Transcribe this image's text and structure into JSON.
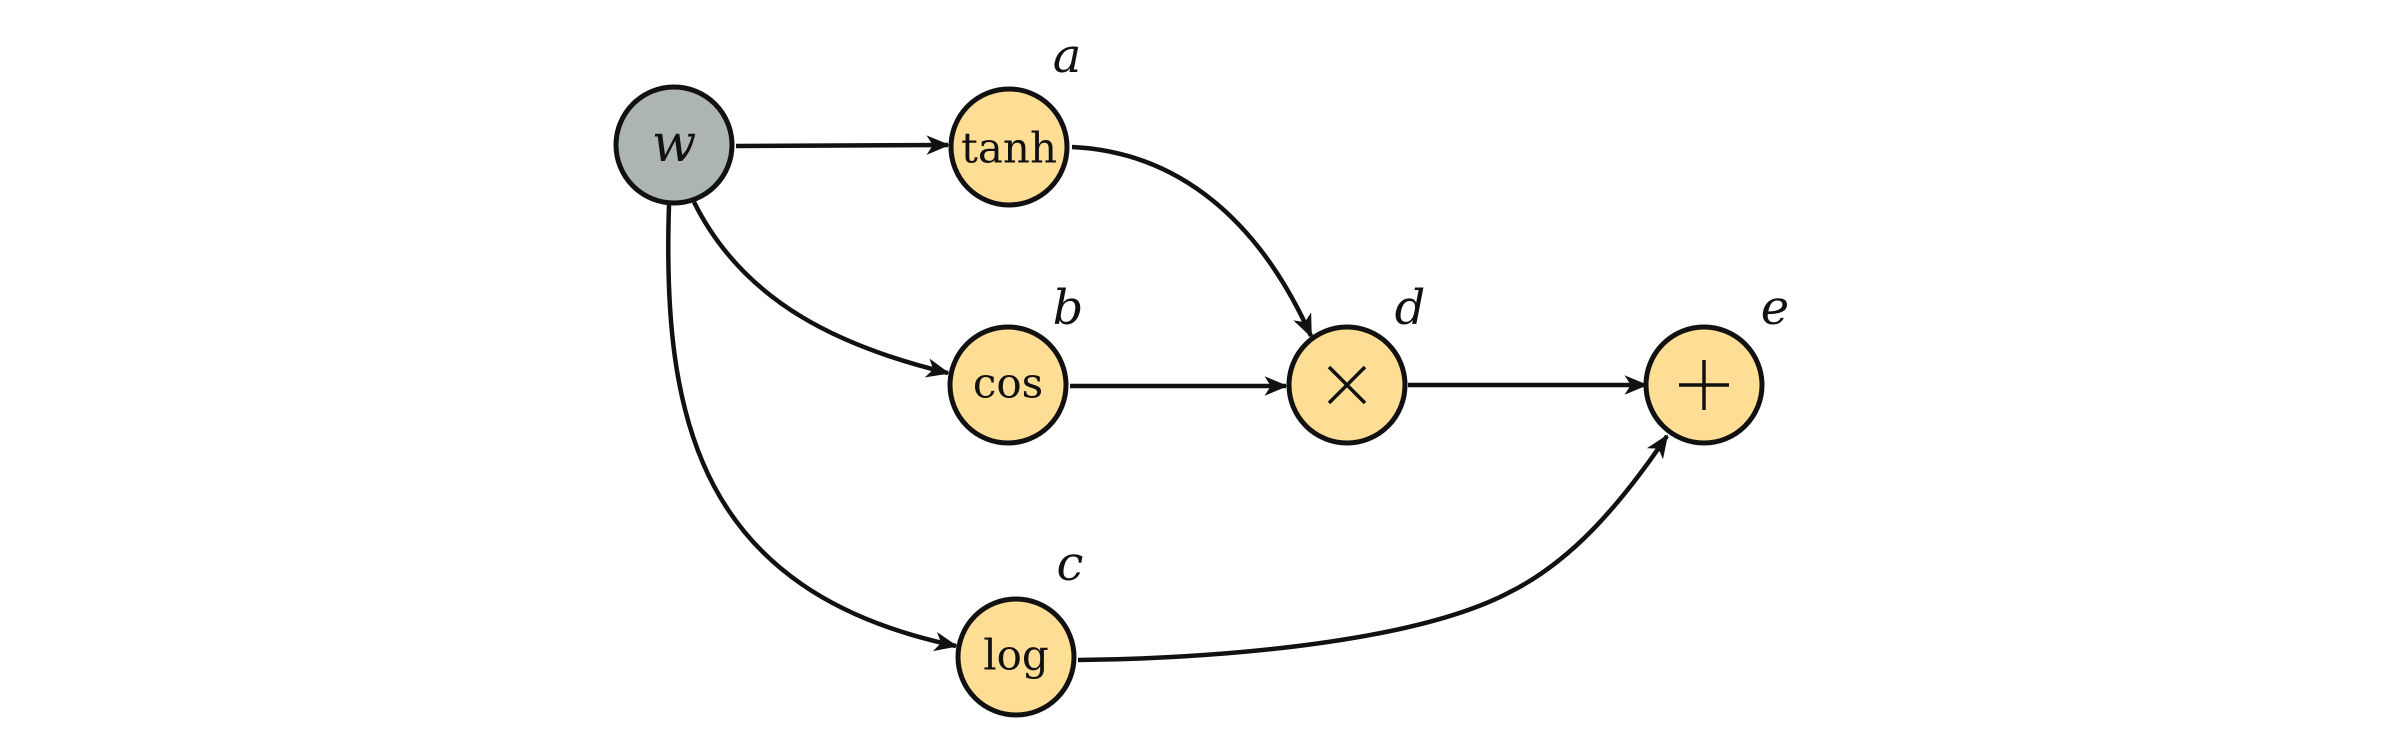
{
  "colors": {
    "input_fill": "#adb5b0",
    "op_fill": "#fedd95",
    "stroke": "#111111"
  },
  "nodes": {
    "w": {
      "label": "w",
      "kind": "input"
    },
    "a": {
      "label": "tanh",
      "var": "a",
      "kind": "op"
    },
    "b": {
      "label": "cos",
      "var": "b",
      "kind": "op"
    },
    "c": {
      "label": "log",
      "var": "c",
      "kind": "op"
    },
    "d": {
      "symbol": "times",
      "var": "d",
      "kind": "op"
    },
    "e": {
      "symbol": "plus",
      "var": "e",
      "kind": "op"
    }
  },
  "edges": [
    {
      "from": "w",
      "to": "a"
    },
    {
      "from": "w",
      "to": "b"
    },
    {
      "from": "w",
      "to": "c"
    },
    {
      "from": "a",
      "to": "d"
    },
    {
      "from": "b",
      "to": "d"
    },
    {
      "from": "d",
      "to": "e"
    },
    {
      "from": "c",
      "to": "e"
    }
  ]
}
